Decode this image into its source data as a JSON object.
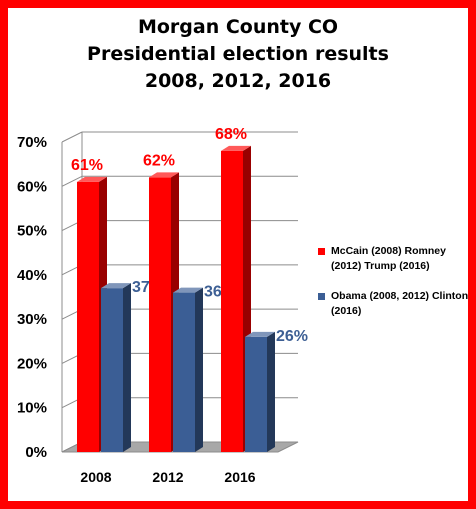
{
  "chart_data": {
    "type": "bar",
    "title": "Morgan County CO\nPresidential election results\n2008, 2012, 2016",
    "categories": [
      "2008",
      "2012",
      "2016"
    ],
    "series": [
      {
        "name": "McCain (2008) Romney (2012) Trump (2016)",
        "values": [
          61,
          62,
          68
        ],
        "labels": [
          "61%",
          "62%",
          "68%"
        ],
        "color": "#ff0000",
        "label_color": "#ff0000"
      },
      {
        "name": "Obama (2008, 2012) Clinton (2016)",
        "values": [
          37,
          36,
          26
        ],
        "labels": [
          "37%",
          "36%",
          "26%"
        ],
        "color": "#3b5e95",
        "label_color": "#3d5f94"
      }
    ],
    "y_ticks": [
      "0%",
      "10%",
      "20%",
      "30%",
      "40%",
      "50%",
      "60%",
      "70%"
    ],
    "ylim": [
      0,
      70
    ],
    "grid": true,
    "legend_position": "right",
    "style": "3d-bars"
  }
}
